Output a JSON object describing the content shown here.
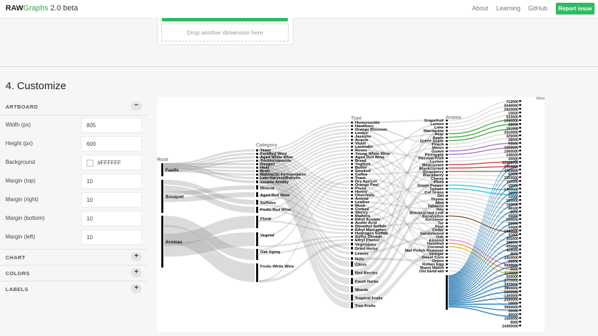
{
  "header": {
    "brand_bold": "RAW",
    "brand_green": "Graphs",
    "brand_version": " 2.0 beta",
    "nav": [
      "About",
      "Learning",
      "GitHub"
    ],
    "report_label": "Report issue"
  },
  "mapping": {
    "dropzone_text": "Drop another dimension here"
  },
  "customize": {
    "title": "4. Customize",
    "artboard_label": "ARTBOARD",
    "fields": [
      {
        "label": "Width (px)",
        "value": "805"
      },
      {
        "label": "Height (px)",
        "value": "600"
      },
      {
        "label": "Background",
        "value": "#FFFFFF"
      },
      {
        "label": "Margin (top)",
        "value": "10"
      },
      {
        "label": "Margin (right)",
        "value": "10"
      },
      {
        "label": "Margin (bottom)",
        "value": "10"
      },
      {
        "label": "Margin (left)",
        "value": "10"
      }
    ],
    "sections": [
      "CHART",
      "COLORS",
      "LABELS"
    ]
  },
  "colors": {
    "accent": "#2bbd5f",
    "background": "#FFFFFF"
  },
  "viz": {
    "headers": [
      "Root",
      "Category",
      "Type",
      "Aroma",
      "Result"
    ],
    "root": [
      "Faults",
      "Bouquet",
      "Aromas"
    ],
    "category": [
      "Yeast",
      "Fortified Wine",
      "Aged White Wine",
      "Trichloroanisole",
      "Oxygen",
      "Heat",
      "Brett",
      "Malolactic Fermentation",
      "Late Harvest/Botrytis",
      "Volatile Acidity",
      "Mineral",
      "Aged Red Wine",
      "Sulfides",
      "Fruits Red Wine",
      "Floral",
      "Vegetal",
      "Oak Aging",
      "Fruits White Wine"
    ],
    "type": [
      "Honeysuckle",
      "Hawthorn",
      "Orange Blossom",
      "Linden",
      "Jasmine",
      "Acacia",
      "Violet",
      "Lavender",
      "Roses",
      "Young White Wine",
      "Aged Red Wine",
      "Bread",
      "Yoghurt",
      "Butter",
      "Smoked",
      "Coffee",
      "Toast",
      "Dry Apricot",
      "Orange Peel",
      "Prune",
      "Honey",
      "Chocolate",
      "Animal",
      "Leather",
      "Musk",
      "Corked",
      "Sherry",
      "Madeira",
      "Ethyl Acetate",
      "Acetic Acid",
      "Dimethyl Sulfide",
      "Ethyl Mercaptan",
      "Hydrogen Sulfide",
      "Sulfur Dioxide",
      "Ethyl Phenol",
      "Vegetables",
      "Dried Herbs",
      "Leaves",
      "Nuts",
      "Citrus",
      "Red Berries",
      "Fresh Herbs",
      "Woods",
      "Tropical Fruits",
      "Tree Fruits"
    ],
    "aroma": [
      "Grapefruit",
      "Lemon",
      "Lime",
      "Mandarine",
      "Pear",
      "Apple",
      "Green Apple",
      "Peach",
      "Melon",
      "Guava",
      "Pineapple",
      "Passion Fruit",
      "Lychee",
      "Redcurrant",
      "Blackcurrant",
      "Strawberry",
      "Blackberry",
      "Cherry",
      "Plum",
      "Green Pepper",
      "Tomato",
      "Cut Grass",
      "Dill",
      "Thyme",
      "Mint",
      "Tabacco",
      "Hay",
      "Blackcurrant Leaf",
      "Eucalyptus",
      "Kerosene",
      "Tar",
      "Pine",
      "Cedar",
      "Sandalwood",
      "Oak",
      "Almond",
      "Hazelnut",
      "Coconut",
      "Nail Polish Remover",
      "Vinegar",
      "Sweet Corn",
      "Onion",
      "Rotten Egg",
      "Burnt Match",
      "Old band-aid"
    ],
    "result": [
      "Result",
      "712000",
      "5040000",
      "2920000",
      "10000",
      "533000",
      "1590000",
      "28000",
      "151000",
      "2010000",
      "326000",
      "28000",
      "93000",
      "1000000",
      "1060000",
      "245000",
      "30000",
      "35300000",
      "1350000",
      "2420000",
      "60000",
      "1300000",
      "110000",
      "15000",
      "1400000",
      "36000",
      "32000",
      "100000",
      "150000",
      "96100",
      "8000",
      "56000",
      "100000",
      "56000",
      "10000",
      "1040000",
      "31600",
      "355000",
      "388000",
      "430000",
      "429000",
      "4000",
      "3450000",
      "26000",
      "5530000",
      "5000",
      "1100000",
      "550000",
      "2770000",
      "3470000",
      "3800000",
      "5650000",
      "1300000",
      "2690000",
      "10000",
      "3000000",
      "30000",
      "40000",
      "1500000",
      "9000",
      "24300000"
    ]
  }
}
